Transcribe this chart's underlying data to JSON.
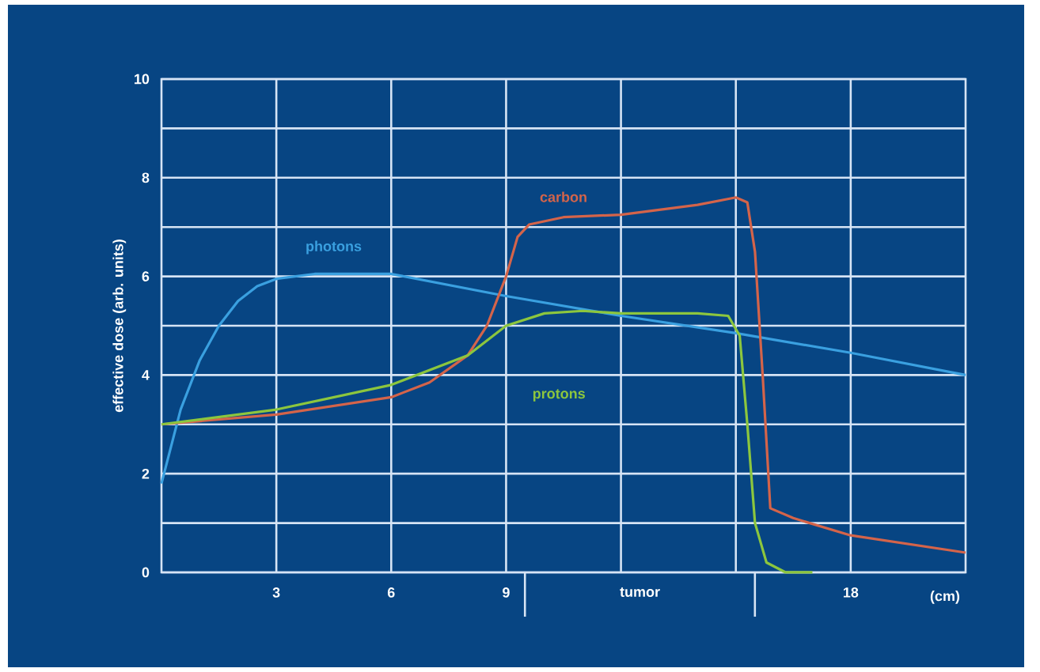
{
  "chart_data": {
    "type": "line",
    "ylabel": "effective dose (arb. units)",
    "xlabel": "(cm)",
    "xlim": [
      0,
      21
    ],
    "ylim": [
      0,
      10
    ],
    "xticks": [
      3,
      6,
      9,
      {
        "value": 12,
        "label": null
      },
      {
        "value": 15,
        "label": null
      },
      18
    ],
    "yticks": [
      0,
      {
        "value": 1,
        "label": null
      },
      2,
      {
        "value": 3,
        "label": null
      },
      4,
      {
        "value": 5,
        "label": null
      },
      6,
      {
        "value": 7,
        "label": null
      },
      8,
      {
        "value": 9,
        "label": null
      },
      10
    ],
    "grid": true,
    "annotations": [
      "tumor"
    ],
    "series": [
      {
        "name": "photons",
        "color": "#3aa0e0",
        "x": [
          0,
          0.5,
          1,
          1.5,
          2,
          2.5,
          3,
          4,
          6,
          9,
          12,
          15,
          18,
          21
        ],
        "values": [
          1.8,
          3.3,
          4.3,
          5.0,
          5.5,
          5.8,
          5.95,
          6.05,
          6.05,
          5.6,
          5.2,
          4.85,
          4.45,
          4.0
        ]
      },
      {
        "name": "carbon",
        "color": "#d4644a",
        "x": [
          0,
          3,
          6,
          7,
          8,
          8.5,
          9,
          9.3,
          9.6,
          10.5,
          12,
          14,
          15,
          15.3,
          15.5,
          15.7,
          15.9,
          16.5,
          18,
          21
        ],
        "values": [
          3.0,
          3.2,
          3.55,
          3.85,
          4.4,
          5.0,
          6.0,
          6.8,
          7.05,
          7.2,
          7.25,
          7.45,
          7.6,
          7.5,
          6.5,
          4.0,
          1.3,
          1.1,
          0.75,
          0.4
        ]
      },
      {
        "name": "protons",
        "color": "#8cc63e",
        "x": [
          0,
          3,
          6,
          8,
          9,
          10,
          11,
          12,
          14,
          14.8,
          15.1,
          15.3,
          15.5,
          15.8,
          16.3,
          17
        ],
        "values": [
          3.0,
          3.3,
          3.8,
          4.4,
          5.0,
          5.25,
          5.3,
          5.25,
          5.25,
          5.2,
          4.8,
          3.0,
          1.0,
          0.2,
          0.0,
          0.0
        ]
      }
    ]
  }
}
